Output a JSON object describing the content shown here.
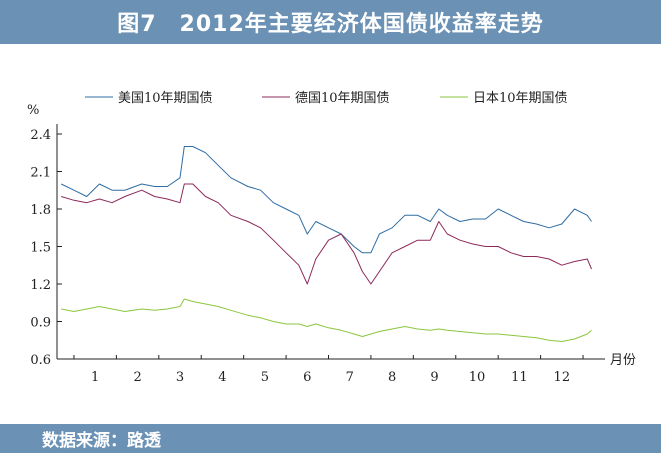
{
  "title": "图7　2012年主要经济体国债收益率走势",
  "source": "数据来源：路透",
  "chart_data": {
    "type": "line",
    "title": "图7　2012年主要经济体国债收益率走势",
    "ylabel": "%",
    "xlabel": "月份",
    "ylim": [
      0.6,
      2.4
    ],
    "y_ticks": [
      "0.6",
      "0.9",
      "1.2",
      "1.5",
      "1.8",
      "2.1",
      "2.4"
    ],
    "x_ticks": [
      "1",
      "2",
      "3",
      "4",
      "5",
      "6",
      "7",
      "8",
      "9",
      "10",
      "11",
      "12"
    ],
    "grid": false,
    "legend_position": "top",
    "series": [
      {
        "name": "美国10年期国债",
        "color": "#2f6da3",
        "x": [
          0.1,
          0.4,
          0.7,
          1.0,
          1.3,
          1.6,
          2.0,
          2.3,
          2.6,
          2.9,
          3.0,
          3.2,
          3.5,
          3.8,
          4.1,
          4.5,
          4.8,
          5.1,
          5.4,
          5.7,
          5.9,
          6.1,
          6.4,
          6.7,
          7.0,
          7.2,
          7.4,
          7.6,
          7.9,
          8.2,
          8.5,
          8.8,
          9.0,
          9.2,
          9.5,
          9.8,
          10.1,
          10.4,
          10.7,
          11.0,
          11.3,
          11.6,
          11.9,
          12.2,
          12.5,
          12.6
        ],
        "values": [
          2.0,
          1.95,
          1.9,
          2.0,
          1.95,
          1.95,
          2.0,
          1.98,
          1.98,
          2.05,
          2.3,
          2.3,
          2.25,
          2.15,
          2.05,
          1.98,
          1.95,
          1.85,
          1.8,
          1.75,
          1.6,
          1.7,
          1.65,
          1.6,
          1.5,
          1.45,
          1.45,
          1.6,
          1.65,
          1.75,
          1.75,
          1.7,
          1.8,
          1.75,
          1.7,
          1.72,
          1.72,
          1.8,
          1.75,
          1.7,
          1.68,
          1.65,
          1.68,
          1.8,
          1.75,
          1.7
        ]
      },
      {
        "name": "德国10年期国债",
        "color": "#8c2a5a",
        "x": [
          0.1,
          0.4,
          0.7,
          1.0,
          1.3,
          1.6,
          2.0,
          2.3,
          2.6,
          2.9,
          3.0,
          3.2,
          3.5,
          3.8,
          4.1,
          4.5,
          4.8,
          5.1,
          5.4,
          5.7,
          5.9,
          6.1,
          6.4,
          6.7,
          7.0,
          7.2,
          7.4,
          7.6,
          7.9,
          8.2,
          8.5,
          8.8,
          9.0,
          9.2,
          9.5,
          9.8,
          10.1,
          10.4,
          10.7,
          11.0,
          11.3,
          11.6,
          11.9,
          12.2,
          12.5,
          12.6
        ],
        "values": [
          1.9,
          1.87,
          1.85,
          1.88,
          1.85,
          1.9,
          1.95,
          1.9,
          1.88,
          1.85,
          2.0,
          2.0,
          1.9,
          1.85,
          1.75,
          1.7,
          1.65,
          1.55,
          1.45,
          1.35,
          1.2,
          1.4,
          1.55,
          1.6,
          1.45,
          1.3,
          1.2,
          1.3,
          1.45,
          1.5,
          1.55,
          1.55,
          1.7,
          1.6,
          1.55,
          1.52,
          1.5,
          1.5,
          1.45,
          1.42,
          1.42,
          1.4,
          1.35,
          1.38,
          1.4,
          1.32
        ]
      },
      {
        "name": "日本10年期国债",
        "color": "#8cc63f",
        "x": [
          0.1,
          0.4,
          0.7,
          1.0,
          1.3,
          1.6,
          2.0,
          2.3,
          2.6,
          2.9,
          3.0,
          3.2,
          3.5,
          3.8,
          4.1,
          4.5,
          4.8,
          5.1,
          5.4,
          5.7,
          5.9,
          6.1,
          6.4,
          6.7,
          7.0,
          7.2,
          7.4,
          7.6,
          7.9,
          8.2,
          8.5,
          8.8,
          9.0,
          9.2,
          9.5,
          9.8,
          10.1,
          10.4,
          10.7,
          11.0,
          11.3,
          11.6,
          11.9,
          12.2,
          12.5,
          12.6
        ],
        "values": [
          1.0,
          0.98,
          1.0,
          1.02,
          1.0,
          0.98,
          1.0,
          0.99,
          1.0,
          1.02,
          1.08,
          1.06,
          1.04,
          1.02,
          0.99,
          0.95,
          0.93,
          0.9,
          0.88,
          0.88,
          0.86,
          0.88,
          0.85,
          0.83,
          0.8,
          0.78,
          0.8,
          0.82,
          0.84,
          0.86,
          0.84,
          0.83,
          0.84,
          0.83,
          0.82,
          0.81,
          0.8,
          0.8,
          0.79,
          0.78,
          0.77,
          0.75,
          0.74,
          0.76,
          0.8,
          0.83
        ]
      }
    ]
  }
}
